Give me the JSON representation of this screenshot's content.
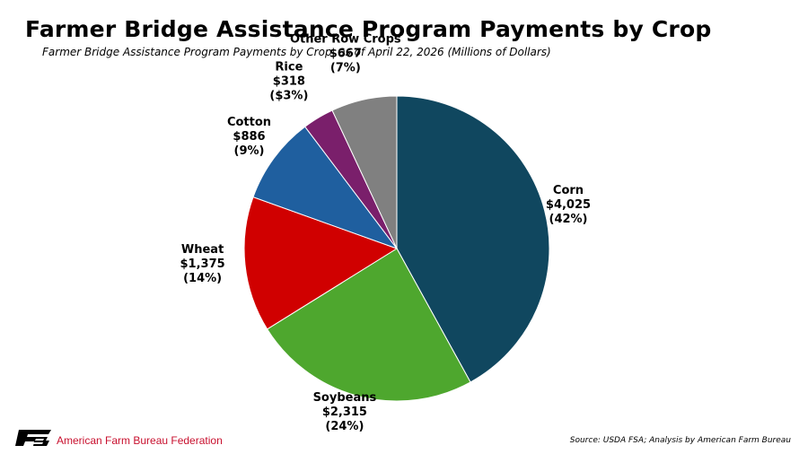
{
  "title": "Farmer Bridge Assistance Program Payments by Crop",
  "subtitle": "Farmer Bridge Assistance Program Payments by Crop, as of April 22, 2026 (Millions of Dollars)",
  "footer": {
    "org_name": "American Farm Bureau Federation",
    "source": "Source: USDA FSA; Analysis by American Farm Bureau"
  },
  "chart_data": {
    "type": "pie",
    "units": "Millions of Dollars",
    "start_angle_deg": 0,
    "direction": "clockwise",
    "slices": [
      {
        "name": "Corn",
        "value": 4025,
        "value_label": "$4,025",
        "pct_label": "(42%)",
        "color": "#10475f"
      },
      {
        "name": "Soybeans",
        "value": 2315,
        "value_label": "$2,315",
        "pct_label": "(24%)",
        "color": "#4ea72e"
      },
      {
        "name": "Wheat",
        "value": 1375,
        "value_label": "$1,375",
        "pct_label": "(14%)",
        "color": "#d00000"
      },
      {
        "name": "Cotton",
        "value": 886,
        "value_label": "$886",
        "pct_label": "(9%)",
        "color": "#1f5f9f"
      },
      {
        "name": "Rice",
        "value": 318,
        "value_label": "$318",
        "pct_label": "($3%)",
        "color": "#7a1f6b"
      },
      {
        "name": "Other Row Crops",
        "value": 667,
        "value_label": "$667",
        "pct_label": "(7%)",
        "color": "#808080"
      }
    ]
  }
}
